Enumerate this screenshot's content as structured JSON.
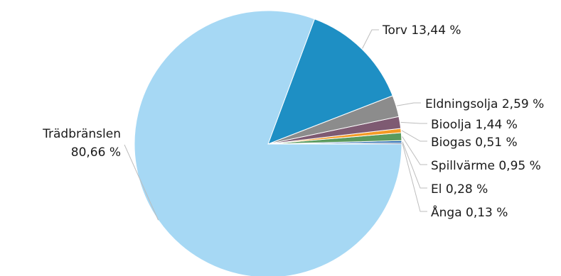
{
  "chart_data": {
    "type": "pie",
    "start": "3 o'clock, counter-clockwise",
    "slices": [
      {
        "name": "Ånga",
        "value": 0.13,
        "value_label": "0,13 %",
        "color": "#1f3b73"
      },
      {
        "name": "El",
        "value": 0.28,
        "value_label": "0,28 %",
        "color": "#2f6fb1"
      },
      {
        "name": "Spillvärme",
        "value": 0.95,
        "value_label": "0,95 %",
        "color": "#5a9a5e"
      },
      {
        "name": "Biogas",
        "value": 0.51,
        "value_label": "0,51 %",
        "color": "#f39a24"
      },
      {
        "name": "Bioolja",
        "value": 1.44,
        "value_label": "1,44 %",
        "color": "#7e5a72"
      },
      {
        "name": "Eldningsolja",
        "value": 2.59,
        "value_label": "2,59 %",
        "color": "#8c8c8c"
      },
      {
        "name": "Torv",
        "value": 13.44,
        "value_label": "13,44 %",
        "color": "#1e8fc4"
      },
      {
        "name": "Trädbränslen",
        "value": 80.66,
        "value_label": "80,66 %",
        "color": "#a6d8f4"
      }
    ]
  }
}
